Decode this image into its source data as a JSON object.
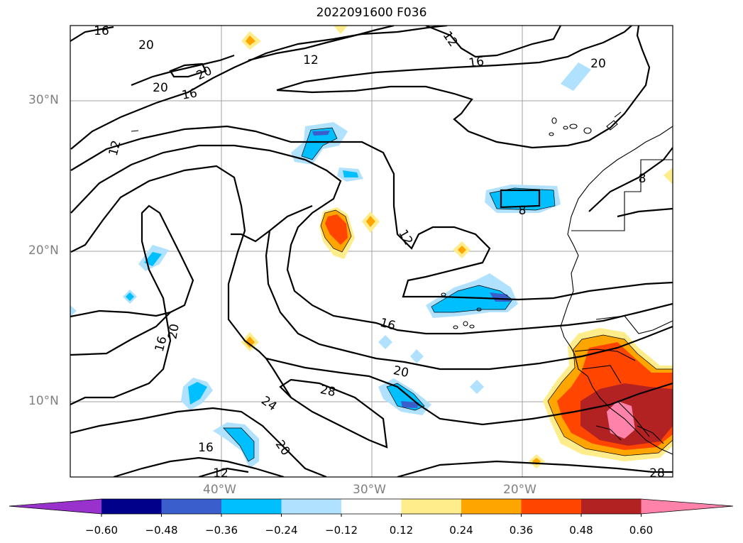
{
  "title": "2022091600 F036",
  "lat_labels": [
    "30°N",
    "20°N",
    "10°N"
  ],
  "lon_labels": [
    "40°W",
    "30°W",
    "20°W"
  ],
  "contour_labels": [
    "16",
    "20",
    "20",
    "20",
    "16",
    "12",
    "12",
    "16",
    "20",
    "12",
    "12",
    "16",
    "20",
    "16",
    "20",
    "28",
    "24",
    "20",
    "16",
    "12",
    "8",
    "8",
    "28"
  ],
  "colorbar": {
    "ticks": [
      "−0.60",
      "−0.48",
      "−0.36",
      "−0.24",
      "−0.12",
      "0.12",
      "0.24",
      "0.36",
      "0.48",
      "0.60"
    ],
    "colors": [
      "#9932cc",
      "#00008b",
      "#3a5fcd",
      "#00bfff",
      "#b0e2ff",
      "#ffffff",
      "#ffec8b",
      "#ffa500",
      "#ff4500",
      "#b22222",
      "#ff82ab"
    ]
  }
}
